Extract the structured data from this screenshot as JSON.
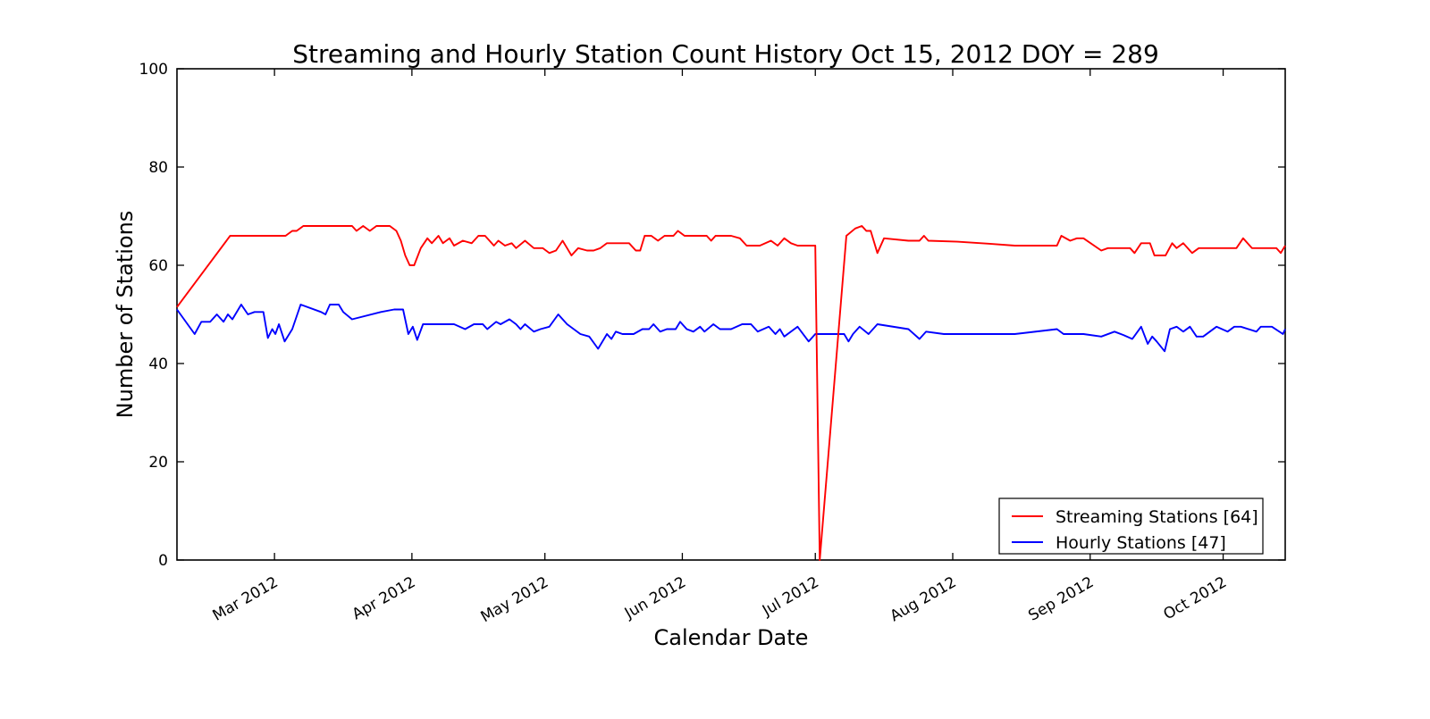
{
  "chart_data": {
    "type": "line",
    "title": "Streaming and Hourly Station Count History Oct 15, 2012 DOY = 289",
    "xlabel": "Calendar Date",
    "ylabel": "Number of Stations",
    "ylim": [
      0,
      100
    ],
    "yticks": [
      0,
      20,
      40,
      60,
      80,
      100
    ],
    "x_unit": "day_of_year_2012",
    "xlim": [
      39,
      289
    ],
    "xticks": [
      {
        "doy": 61,
        "label": "Mar 2012"
      },
      {
        "doy": 92,
        "label": "Apr 2012"
      },
      {
        "doy": 122,
        "label": "May 2012"
      },
      {
        "doy": 153,
        "label": "Jun 2012"
      },
      {
        "doy": 183,
        "label": "Jul 2012"
      },
      {
        "doy": 214,
        "label": "Aug 2012"
      },
      {
        "doy": 245,
        "label": "Sep 2012"
      },
      {
        "doy": 275,
        "label": "Oct 2012"
      }
    ],
    "grid": false,
    "tick_direction": "in",
    "legend": {
      "position": "lower right",
      "items": [
        {
          "label": "Streaming Stations [64]",
          "color": "#ff0000"
        },
        {
          "label": "Hourly Stations [47]",
          "color": "#0000ff"
        }
      ]
    },
    "series": [
      {
        "name": "Streaming Stations [64]",
        "color": "#ff0000",
        "points": [
          [
            39,
            51.5
          ],
          [
            51,
            66
          ],
          [
            63.5,
            66
          ],
          [
            65,
            67
          ],
          [
            66,
            67
          ],
          [
            67.5,
            68
          ],
          [
            78.5,
            68
          ],
          [
            79.5,
            67
          ],
          [
            81,
            68
          ],
          [
            82.5,
            67
          ],
          [
            84,
            68
          ],
          [
            87,
            68
          ],
          [
            88.5,
            67
          ],
          [
            89.5,
            65
          ],
          [
            90.5,
            62
          ],
          [
            91.5,
            60
          ],
          [
            92.5,
            60
          ],
          [
            94,
            63.5
          ],
          [
            95.5,
            65.5
          ],
          [
            96.5,
            64.5
          ],
          [
            98,
            66
          ],
          [
            99,
            64.5
          ],
          [
            100.5,
            65.5
          ],
          [
            101.5,
            64
          ],
          [
            103.5,
            65
          ],
          [
            105.5,
            64.5
          ],
          [
            107,
            66
          ],
          [
            108.5,
            66
          ],
          [
            109.5,
            65
          ],
          [
            110.5,
            64
          ],
          [
            111.5,
            65
          ],
          [
            113,
            64
          ],
          [
            114.5,
            64.5
          ],
          [
            115.5,
            63.5
          ],
          [
            117.5,
            65
          ],
          [
            119.5,
            63.5
          ],
          [
            121.5,
            63.5
          ],
          [
            123,
            62.5
          ],
          [
            124.5,
            63
          ],
          [
            126,
            65
          ],
          [
            128,
            62
          ],
          [
            129.5,
            63.5
          ],
          [
            131.5,
            63
          ],
          [
            133,
            63
          ],
          [
            134.5,
            63.5
          ],
          [
            136,
            64.5
          ],
          [
            141,
            64.5
          ],
          [
            142.5,
            63
          ],
          [
            143.5,
            63
          ],
          [
            144.5,
            66
          ],
          [
            146,
            66
          ],
          [
            147.5,
            65
          ],
          [
            149,
            66
          ],
          [
            151,
            66
          ],
          [
            152,
            67
          ],
          [
            153.5,
            66
          ],
          [
            158.5,
            66
          ],
          [
            159.5,
            65
          ],
          [
            160.5,
            66
          ],
          [
            164,
            66
          ],
          [
            166,
            65.5
          ],
          [
            167.5,
            64
          ],
          [
            170.5,
            64
          ],
          [
            173,
            65
          ],
          [
            174.5,
            64
          ],
          [
            176,
            65.5
          ],
          [
            177.5,
            64.5
          ],
          [
            179,
            64
          ],
          [
            183,
            64
          ],
          [
            184,
            0
          ],
          [
            190,
            66
          ],
          [
            192,
            67.5
          ],
          [
            193.5,
            68
          ],
          [
            194.5,
            67
          ],
          [
            195.5,
            67
          ],
          [
            197,
            62.5
          ],
          [
            198.5,
            65.5
          ],
          [
            204,
            65
          ],
          [
            206.5,
            65
          ],
          [
            207.5,
            66
          ],
          [
            208.5,
            65
          ],
          [
            215,
            64.8
          ],
          [
            222,
            64.4
          ],
          [
            228,
            64
          ],
          [
            237.5,
            64
          ],
          [
            238.5,
            66
          ],
          [
            240.5,
            65
          ],
          [
            242,
            65.5
          ],
          [
            243.5,
            65.5
          ],
          [
            247.5,
            63
          ],
          [
            249,
            63.5
          ],
          [
            254,
            63.5
          ],
          [
            255,
            62.5
          ],
          [
            256.5,
            64.5
          ],
          [
            258.5,
            64.5
          ],
          [
            259.5,
            62
          ],
          [
            262,
            62
          ],
          [
            263.5,
            64.5
          ],
          [
            264.5,
            63.5
          ],
          [
            266,
            64.5
          ],
          [
            268,
            62.5
          ],
          [
            269.5,
            63.5
          ],
          [
            278,
            63.5
          ],
          [
            279.5,
            65.5
          ],
          [
            281.5,
            63.5
          ],
          [
            287,
            63.5
          ],
          [
            288,
            62.5
          ],
          [
            289,
            64
          ]
        ]
      },
      {
        "name": "Hourly Stations [47]",
        "color": "#0000ff",
        "points": [
          [
            39,
            51
          ],
          [
            43,
            46
          ],
          [
            44.5,
            48.5
          ],
          [
            46.5,
            48.5
          ],
          [
            48,
            50
          ],
          [
            49.5,
            48.5
          ],
          [
            50.5,
            50
          ],
          [
            51.5,
            49
          ],
          [
            53.5,
            52
          ],
          [
            55,
            50
          ],
          [
            56.5,
            50.5
          ],
          [
            58.5,
            50.5
          ],
          [
            59.5,
            45.2
          ],
          [
            60.5,
            47
          ],
          [
            61.2,
            46
          ],
          [
            62,
            48
          ],
          [
            63.3,
            44.5
          ],
          [
            65,
            47
          ],
          [
            66.9,
            52
          ],
          [
            71.5,
            50.5
          ],
          [
            72.5,
            50
          ],
          [
            73.5,
            52
          ],
          [
            75.5,
            52
          ],
          [
            76.5,
            50.5
          ],
          [
            78.5,
            49
          ],
          [
            85,
            50.5
          ],
          [
            88,
            51
          ],
          [
            90,
            51
          ],
          [
            91.2,
            46
          ],
          [
            92.2,
            47.5
          ],
          [
            93.2,
            44.8
          ],
          [
            94.5,
            48
          ],
          [
            101.5,
            48
          ],
          [
            104,
            47
          ],
          [
            106,
            48
          ],
          [
            108,
            48
          ],
          [
            109,
            47
          ],
          [
            111,
            48.5
          ],
          [
            112,
            48
          ],
          [
            114,
            49
          ],
          [
            115.5,
            48
          ],
          [
            116.5,
            47
          ],
          [
            117.5,
            48
          ],
          [
            119.5,
            46.5
          ],
          [
            121,
            47
          ],
          [
            123,
            47.5
          ],
          [
            125,
            50
          ],
          [
            127,
            48
          ],
          [
            130,
            46
          ],
          [
            132,
            45.5
          ],
          [
            134,
            43
          ],
          [
            136,
            46
          ],
          [
            137,
            45
          ],
          [
            138,
            46.5
          ],
          [
            139.5,
            46
          ],
          [
            142,
            46
          ],
          [
            144,
            47
          ],
          [
            145.5,
            47
          ],
          [
            146.5,
            48
          ],
          [
            148,
            46.5
          ],
          [
            149.5,
            47
          ],
          [
            151.5,
            47
          ],
          [
            152.5,
            48.5
          ],
          [
            154,
            47
          ],
          [
            155.5,
            46.5
          ],
          [
            157,
            47.5
          ],
          [
            158,
            46.5
          ],
          [
            160,
            48
          ],
          [
            161.5,
            47
          ],
          [
            164,
            47
          ],
          [
            166.5,
            48
          ],
          [
            168.5,
            48
          ],
          [
            170,
            46.5
          ],
          [
            172.5,
            47.5
          ],
          [
            174,
            46
          ],
          [
            175,
            47
          ],
          [
            176,
            45.5
          ],
          [
            179,
            47.5
          ],
          [
            181.5,
            44.5
          ],
          [
            183,
            46
          ],
          [
            189.5,
            46
          ],
          [
            190.5,
            44.5
          ],
          [
            191.5,
            46
          ],
          [
            193,
            47.5
          ],
          [
            195,
            46
          ],
          [
            197,
            48
          ],
          [
            204,
            47
          ],
          [
            206.5,
            45
          ],
          [
            208,
            46.5
          ],
          [
            212,
            46
          ],
          [
            228,
            46
          ],
          [
            237.5,
            47
          ],
          [
            239,
            46
          ],
          [
            243.5,
            46
          ],
          [
            247.5,
            45.5
          ],
          [
            250.5,
            46.5
          ],
          [
            252.5,
            45.8
          ],
          [
            254.5,
            45
          ],
          [
            256.5,
            47.5
          ],
          [
            258,
            44
          ],
          [
            259,
            45.5
          ],
          [
            260,
            44.5
          ],
          [
            261.8,
            42.5
          ],
          [
            263,
            47
          ],
          [
            264.5,
            47.5
          ],
          [
            266,
            46.5
          ],
          [
            267.5,
            47.5
          ],
          [
            269,
            45.5
          ],
          [
            270.5,
            45.5
          ],
          [
            273.5,
            47.5
          ],
          [
            276,
            46.5
          ],
          [
            277.5,
            47.5
          ],
          [
            279,
            47.5
          ],
          [
            282.5,
            46.5
          ],
          [
            283.5,
            47.5
          ],
          [
            286,
            47.5
          ],
          [
            288.5,
            46
          ],
          [
            289,
            47
          ]
        ]
      }
    ]
  }
}
